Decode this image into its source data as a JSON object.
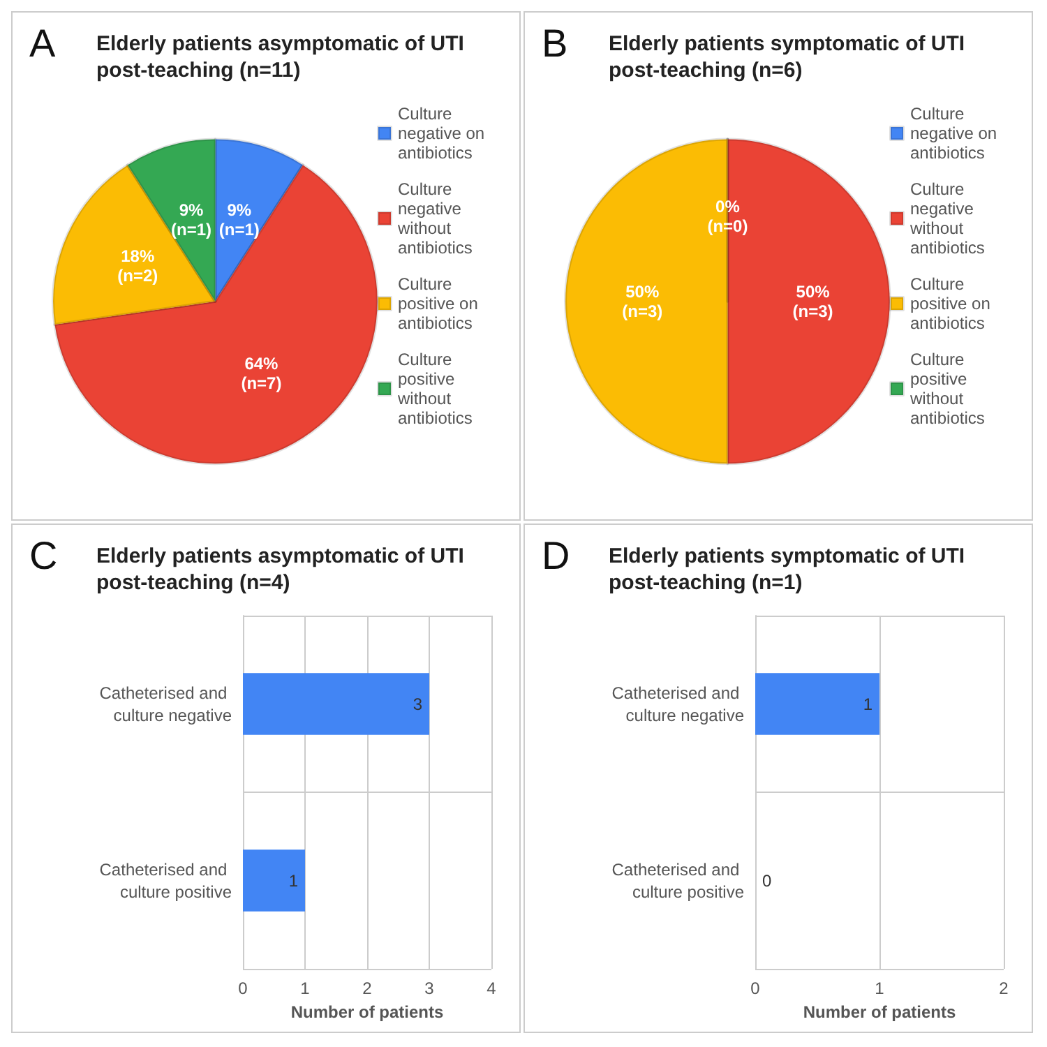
{
  "chart_data": [
    {
      "type": "pie",
      "title": "Elderly patients asymptomatic of UTI\npost-teaching (n=11)",
      "annotations": [
        "A"
      ],
      "categories": [
        "Culture negative on antibiotics",
        "Culture negative without antibiotics",
        "Culture positive on antibiotics",
        "Culture positive without antibiotics"
      ],
      "values": [
        1,
        7,
        2,
        1
      ],
      "colors": [
        "#4285f4",
        "#ea4335",
        "#fbbc04",
        "#34a853"
      ],
      "value_labels": [
        "9%\n(n=1)",
        "64%\n(n=7)",
        "18%\n(n=2)",
        "9%\n(n=1)"
      ],
      "legend": "right"
    },
    {
      "type": "pie",
      "title": "Elderly patients symptomatic of UTI\npost-teaching (n=6)",
      "annotations": [
        "B"
      ],
      "categories": [
        "Culture negative on antibiotics",
        "Culture negative without antibiotics",
        "Culture positive on antibiotics",
        "Culture positive without antibiotics"
      ],
      "values": [
        0,
        3,
        3,
        0
      ],
      "colors": [
        "#4285f4",
        "#ea4335",
        "#fbbc04",
        "#34a853"
      ],
      "value_labels": [
        "0%\n(n=0)",
        "50%\n(n=3)",
        "50%\n(n=3)",
        null
      ],
      "legend": "right"
    },
    {
      "type": "bar",
      "orientation": "horizontal",
      "title": "Elderly patients asymptomatic of UTI\npost-teaching (n=4)",
      "annotations": [
        "C"
      ],
      "categories": [
        "Catheterised and culture negative",
        "Catheterised and culture positive"
      ],
      "series": [
        {
          "color": "#4285f4",
          "values": [
            3,
            1
          ]
        }
      ],
      "xlim": [
        0,
        4
      ],
      "xticks": [
        0,
        1,
        2,
        3,
        4
      ],
      "xlabel": "Number of patients",
      "grid": "x",
      "data_labels": true
    },
    {
      "type": "bar",
      "orientation": "horizontal",
      "title": "Elderly patients symptomatic of UTI\npost-teaching (n=1)",
      "annotations": [
        "D"
      ],
      "categories": [
        "Catheterised and culture negative",
        "Catheterised and culture positive"
      ],
      "series": [
        {
          "color": "#4285f4",
          "values": [
            1,
            0
          ]
        }
      ],
      "xlim": [
        0,
        2
      ],
      "xticks": [
        0,
        1,
        2
      ],
      "xlabel": "Number of patients",
      "grid": "x",
      "data_labels": true
    }
  ]
}
